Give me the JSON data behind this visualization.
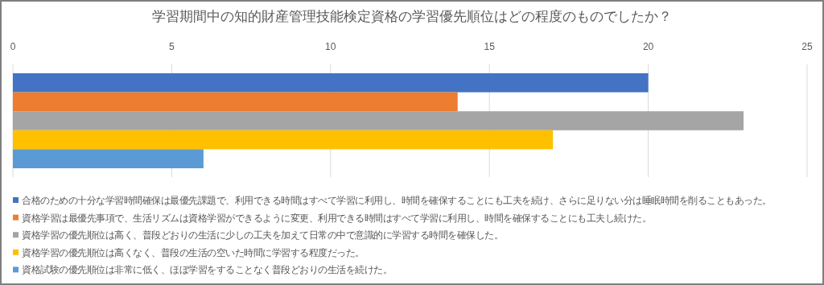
{
  "chart_data": {
    "type": "bar",
    "orientation": "horizontal",
    "title": "学習期間中の知的財産管理技能検定資格の学習優先順位はどの程度のものでしたか？",
    "categories": [
      null
    ],
    "series": [
      {
        "name": "合格のための十分な学習時間確保は最優先課題で、利用できる時間はすべて学習に利用し、時間を確保することにも工夫を続け、さらに足りない分は睡眠時間を削ることもあった。",
        "color": "#4472c4",
        "values": [
          20
        ]
      },
      {
        "name": "資格学習は最優先事項で、生活リズムは資格学習ができるように変更、利用できる時間はすべて学習に利用し、時間を確保することにも工夫し続けた。",
        "color": "#ed7d31",
        "values": [
          14
        ]
      },
      {
        "name": "資格学習の優先順位は高く、普段どおりの生活に少しの工夫を加えて日常の中で意識的に学習する時間を確保した。",
        "color": "#a5a5a5",
        "values": [
          23
        ]
      },
      {
        "name": "資格学習の優先順位は高くなく、普段の生活の空いた時間に学習する程度だった。",
        "color": "#ffc000",
        "values": [
          17
        ]
      },
      {
        "name": "資格試験の優先順位は非常に低く、ほぼ学習をすることなく普段どおりの生活を続けた。",
        "color": "#5b9bd5",
        "values": [
          6
        ]
      }
    ],
    "xlim": [
      0,
      25
    ],
    "xticks": [
      0,
      5,
      10,
      15,
      20,
      25
    ],
    "grid": "x",
    "legend": "bottom"
  }
}
